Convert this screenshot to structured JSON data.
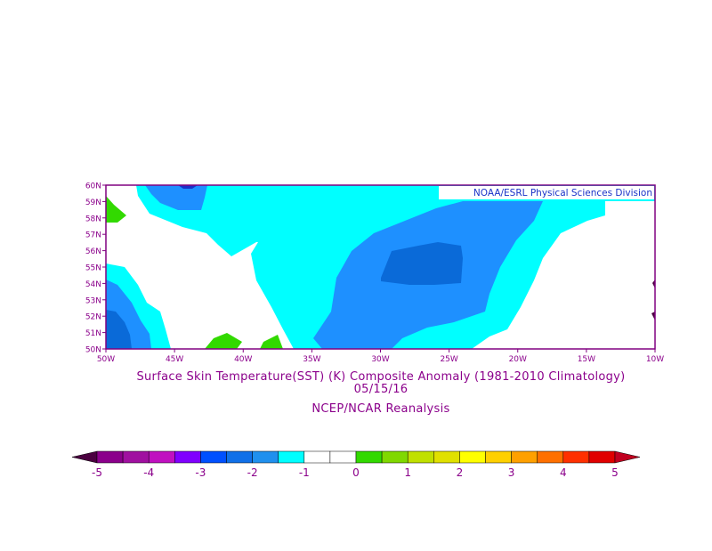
{
  "map": {
    "credit": "NOAA/ESRL Physical Sciences Division",
    "lat_labels": [
      "50N",
      "51N",
      "52N",
      "53N",
      "54N",
      "55N",
      "56N",
      "57N",
      "58N",
      "59N",
      "60N"
    ],
    "lon_labels": [
      "50W",
      "45W",
      "40W",
      "35W",
      "30W",
      "25W",
      "20W",
      "15W",
      "10W"
    ],
    "extent": {
      "lon": [
        -50,
        -10
      ],
      "lat": [
        50,
        60
      ]
    },
    "colors": {
      "frame": "#800080",
      "cyan": "#00ffff",
      "lightblue": "#1e90ff",
      "blue": "#0a6ad8",
      "darkblue": "#1a32c8",
      "green": "#32d900"
    }
  },
  "title": {
    "line1": "Surface Skin Temperature(SST) (K) Composite Anomaly (1981-2010 Climatology)",
    "line2": "05/15/16",
    "line3": "NCEP/NCAR Reanalysis"
  },
  "colorbar": {
    "labels": [
      "-5",
      "-4",
      "-3",
      "-2",
      "-1",
      "0",
      "1",
      "2",
      "3",
      "4",
      "5"
    ],
    "colors": [
      "#4b0040",
      "#8b008b",
      "#a010a0",
      "#c010c0",
      "#8000ff",
      "#0050ff",
      "#1070e8",
      "#2090ee",
      "#00ffff",
      "#ffffff",
      "#ffffff",
      "#32d900",
      "#80d800",
      "#c0e000",
      "#e0e000",
      "#ffff00",
      "#ffd000",
      "#ffa000",
      "#ff7000",
      "#ff3000",
      "#e00000"
    ],
    "min_color": "#4b0040",
    "max_color": "#c00020"
  }
}
